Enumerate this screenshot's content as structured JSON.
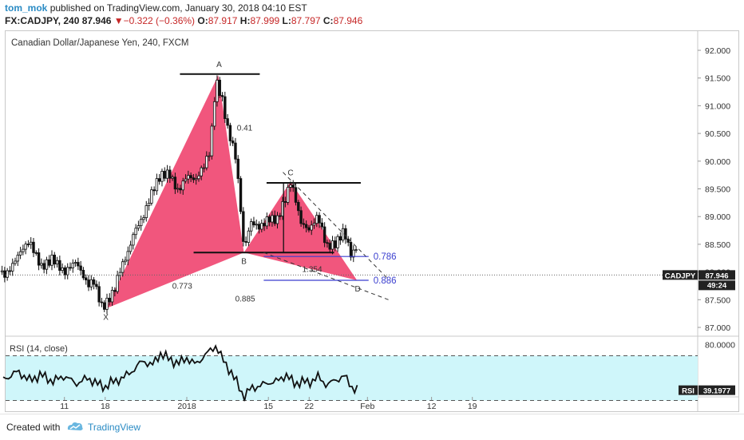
{
  "header": {
    "user": "tom_mok",
    "published": "published on TradingView.com, January 30, 2018 04:10 EST",
    "symbol": "FX:CADJPY, 240",
    "last": "87.946",
    "change_arrow": "▼",
    "change": "−0.322 (−0.36%)",
    "o_label": "O:",
    "o": "87.917",
    "h_label": "H:",
    "h": "87.999",
    "l_label": "L:",
    "l": "87.797",
    "c_label": "C:",
    "c": "87.946"
  },
  "chart_title": "Canadian Dollar/Japanese Yen, 240, FXCM",
  "colors": {
    "pattern": "#f0446f",
    "candle": "#111111",
    "rsi_band": "#cff6fa",
    "fib_line": "#3b3fcf",
    "link": "#2a8bc4",
    "down": "#c62828"
  },
  "chart_data": {
    "type": "candlestick",
    "symbol": "CADJPY",
    "interval": "240",
    "y_axis": {
      "min": 87.0,
      "max": 92.0,
      "ticks": [
        "92.000",
        "91.500",
        "91.000",
        "90.500",
        "90.000",
        "89.500",
        "89.000",
        "88.500",
        "88.000",
        "87.500",
        "87.000"
      ]
    },
    "x_axis": {
      "ticks": [
        "11",
        "18",
        "2018",
        "15",
        "22",
        "Feb",
        "12",
        "19"
      ],
      "tick_days": [
        11,
        18,
        32,
        46,
        53,
        63,
        74,
        81
      ]
    },
    "price_path": [
      [
        1,
        88.0
      ],
      [
        3,
        88.3
      ],
      [
        5,
        88.5
      ],
      [
        7,
        88.1
      ],
      [
        9,
        88.3
      ],
      [
        11,
        87.95
      ],
      [
        13,
        88.15
      ],
      [
        15,
        87.8
      ],
      [
        16,
        87.9
      ],
      [
        17.5,
        87.35
      ],
      [
        18.5,
        87.45
      ],
      [
        19.5,
        87.6
      ],
      [
        20.5,
        88.0
      ],
      [
        22,
        88.4
      ],
      [
        23,
        88.8
      ],
      [
        24.5,
        89.0
      ],
      [
        26,
        89.4
      ],
      [
        27.5,
        89.7
      ],
      [
        29,
        89.8
      ],
      [
        30.5,
        89.5
      ],
      [
        32,
        89.75
      ],
      [
        33.5,
        89.6
      ],
      [
        35,
        89.9
      ],
      [
        36,
        90.2
      ],
      [
        37,
        91.5
      ],
      [
        38,
        91.2
      ],
      [
        39,
        90.6
      ],
      [
        40.3,
        90.1
      ],
      [
        41,
        89.4
      ],
      [
        41.8,
        88.35
      ],
      [
        43,
        88.9
      ],
      [
        44.5,
        88.85
      ],
      [
        46,
        89.0
      ],
      [
        47.5,
        88.9
      ],
      [
        49,
        89.3
      ],
      [
        49.8,
        89.6
      ],
      [
        50.5,
        89.4
      ],
      [
        51.5,
        88.95
      ],
      [
        53,
        88.8
      ],
      [
        54.5,
        89.0
      ],
      [
        56,
        88.4
      ],
      [
        57.5,
        88.5
      ],
      [
        59,
        88.8
      ],
      [
        60.3,
        88.3
      ],
      [
        61,
        88.5
      ],
      [
        61.5,
        87.95
      ]
    ],
    "current_price": 87.946,
    "current_price_label": "CADJPY",
    "countdown": "49:24",
    "harmonic_points": [
      {
        "label": "X",
        "day": 18.1,
        "price": 87.34
      },
      {
        "label": "A",
        "day": 37.4,
        "price": 91.55
      },
      {
        "label": "B",
        "day": 41.8,
        "price": 88.35
      },
      {
        "label": "C",
        "day": 49.8,
        "price": 89.63
      },
      {
        "label": "D",
        "day": 61.2,
        "price": 87.85
      }
    ],
    "ratios": [
      {
        "text": "0.41",
        "day": 40.6,
        "price": 90.55
      },
      {
        "text": "0.773",
        "day": 29.5,
        "price": 87.7
      },
      {
        "text": "0.885",
        "day": 40.3,
        "price": 87.47
      },
      {
        "text": "1.354",
        "day": 51.8,
        "price": 88.0
      }
    ],
    "levels": [
      {
        "text": "0.786",
        "price": 88.28
      },
      {
        "text": "0.886",
        "price": 87.85
      }
    ],
    "rsi": {
      "label": "RSI (14, close)",
      "value_label": "RSI",
      "value": "39.1977",
      "upper_tick": "80.0000",
      "band": [
        30,
        70
      ],
      "points": [
        [
          1,
          50
        ],
        [
          3,
          56
        ],
        [
          5,
          48
        ],
        [
          7,
          53
        ],
        [
          9,
          47
        ],
        [
          11,
          52
        ],
        [
          13,
          45
        ],
        [
          15,
          50
        ],
        [
          17,
          44
        ],
        [
          18,
          42
        ],
        [
          19,
          46
        ],
        [
          21,
          50
        ],
        [
          23,
          58
        ],
        [
          24.5,
          66
        ],
        [
          26,
          61
        ],
        [
          27.5,
          72
        ],
        [
          29,
          67
        ],
        [
          30.5,
          63
        ],
        [
          32,
          68
        ],
        [
          33.5,
          62
        ],
        [
          35,
          70
        ],
        [
          37,
          79
        ],
        [
          38,
          68
        ],
        [
          39.5,
          56
        ],
        [
          41,
          42
        ],
        [
          41.8,
          33
        ],
        [
          43,
          41
        ],
        [
          44.5,
          43
        ],
        [
          46,
          46
        ],
        [
          47.5,
          47
        ],
        [
          49,
          53
        ],
        [
          50.5,
          45
        ],
        [
          52,
          47
        ],
        [
          53,
          46
        ],
        [
          54.5,
          51
        ],
        [
          56,
          44
        ],
        [
          57.5,
          48
        ],
        [
          59,
          52
        ],
        [
          60.3,
          42
        ],
        [
          61.5,
          39
        ]
      ]
    }
  },
  "footer": {
    "created_with": "Created with",
    "brand": "TradingView"
  }
}
